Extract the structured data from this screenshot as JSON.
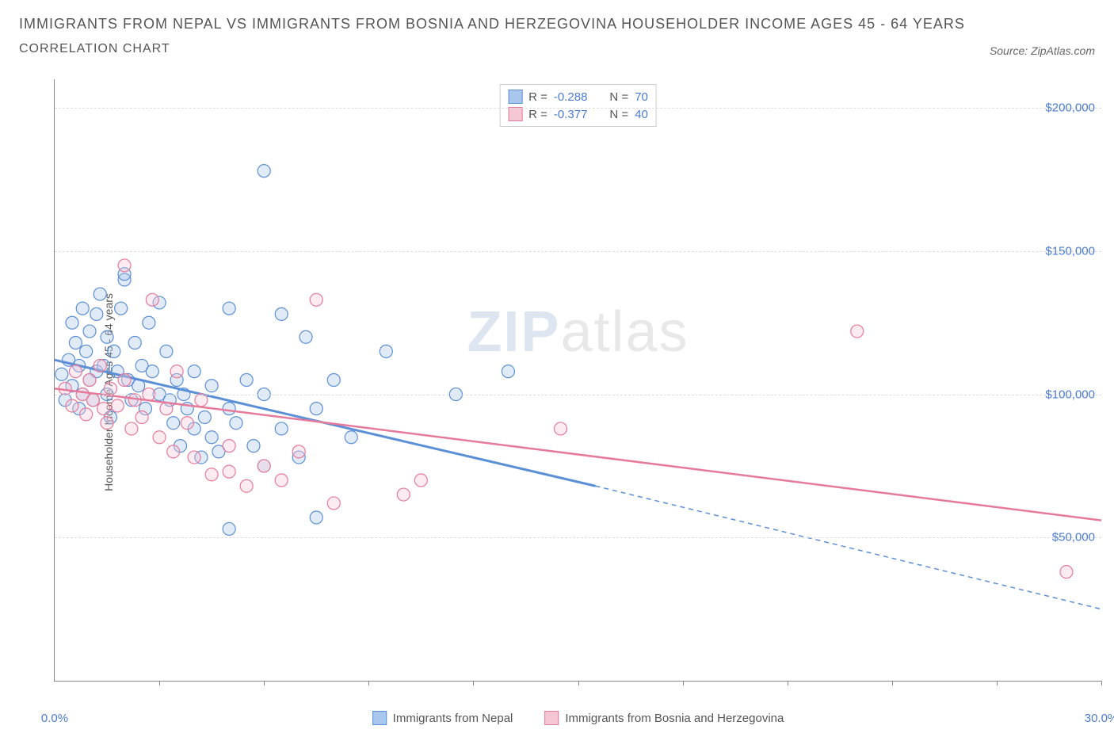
{
  "title_line1": "IMMIGRANTS FROM NEPAL VS IMMIGRANTS FROM BOSNIA AND HERZEGOVINA HOUSEHOLDER INCOME AGES 45 - 64 YEARS",
  "title_line2": "CORRELATION CHART",
  "source_label": "Source: ZipAtlas.com",
  "y_axis_label": "Householder Income Ages 45 - 64 years",
  "watermark_a": "ZIP",
  "watermark_b": "atlas",
  "chart": {
    "type": "scatter",
    "x_min": 0.0,
    "x_max": 30.0,
    "y_min": 0,
    "y_max": 210000,
    "x_tick_labels": [
      {
        "x": 0.0,
        "label": "0.0%"
      },
      {
        "x": 30.0,
        "label": "30.0%"
      }
    ],
    "x_ticks": [
      3,
      6,
      9,
      12,
      15,
      18,
      21,
      24,
      27,
      30
    ],
    "y_ticks": [
      {
        "y": 50000,
        "label": "$50,000"
      },
      {
        "y": 100000,
        "label": "$100,000"
      },
      {
        "y": 150000,
        "label": "$150,000"
      },
      {
        "y": 200000,
        "label": "$200,000"
      }
    ],
    "background_color": "#ffffff",
    "grid_color": "#dddddd",
    "marker_radius": 8,
    "marker_stroke_width": 1.2,
    "marker_fill_opacity": 0.35,
    "series": [
      {
        "name": "Immigrants from Nepal",
        "color_fill": "#a9c6ec",
        "color_stroke": "#5b8fd6",
        "r_label": "R = ",
        "r_value": "-0.288",
        "n_label": "N = ",
        "n_value": "70",
        "trend": {
          "x1": 0,
          "y1": 112000,
          "x2_solid": 15.5,
          "y2_solid": 68000,
          "x2_dash": 30,
          "y2_dash": 25000,
          "width": 3
        },
        "points": [
          [
            0.2,
            107000
          ],
          [
            0.3,
            98000
          ],
          [
            0.4,
            112000
          ],
          [
            0.5,
            125000
          ],
          [
            0.5,
            103000
          ],
          [
            0.6,
            118000
          ],
          [
            0.7,
            95000
          ],
          [
            0.7,
            110000
          ],
          [
            0.8,
            130000
          ],
          [
            0.8,
            100000
          ],
          [
            0.9,
            115000
          ],
          [
            1.0,
            105000
          ],
          [
            1.0,
            122000
          ],
          [
            1.1,
            98000
          ],
          [
            1.2,
            128000
          ],
          [
            1.2,
            108000
          ],
          [
            1.3,
            135000
          ],
          [
            1.4,
            110000
          ],
          [
            1.5,
            100000
          ],
          [
            1.5,
            120000
          ],
          [
            1.6,
            92000
          ],
          [
            1.7,
            115000
          ],
          [
            1.8,
            108000
          ],
          [
            1.9,
            130000
          ],
          [
            2.0,
            140000
          ],
          [
            2.0,
            142000
          ],
          [
            2.1,
            105000
          ],
          [
            2.2,
            98000
          ],
          [
            2.3,
            118000
          ],
          [
            2.4,
            103000
          ],
          [
            2.5,
            110000
          ],
          [
            2.6,
            95000
          ],
          [
            2.7,
            125000
          ],
          [
            2.8,
            108000
          ],
          [
            3.0,
            100000
          ],
          [
            3.0,
            132000
          ],
          [
            3.2,
            115000
          ],
          [
            3.3,
            98000
          ],
          [
            3.4,
            90000
          ],
          [
            3.5,
            105000
          ],
          [
            3.6,
            82000
          ],
          [
            3.7,
            100000
          ],
          [
            3.8,
            95000
          ],
          [
            4.0,
            88000
          ],
          [
            4.0,
            108000
          ],
          [
            4.2,
            78000
          ],
          [
            4.3,
            92000
          ],
          [
            4.5,
            85000
          ],
          [
            4.5,
            103000
          ],
          [
            4.7,
            80000
          ],
          [
            5.0,
            95000
          ],
          [
            5.0,
            130000
          ],
          [
            5.0,
            53000
          ],
          [
            5.2,
            90000
          ],
          [
            5.5,
            105000
          ],
          [
            5.7,
            82000
          ],
          [
            6.0,
            100000
          ],
          [
            6.0,
            75000
          ],
          [
            6.5,
            128000
          ],
          [
            6.5,
            88000
          ],
          [
            7.0,
            78000
          ],
          [
            7.2,
            120000
          ],
          [
            7.5,
            95000
          ],
          [
            7.5,
            57000
          ],
          [
            6.0,
            178000
          ],
          [
            8.0,
            105000
          ],
          [
            8.5,
            85000
          ],
          [
            9.5,
            115000
          ],
          [
            11.5,
            100000
          ],
          [
            13.0,
            108000
          ]
        ]
      },
      {
        "name": "Immigrants from Bosnia and Herzegovina",
        "color_fill": "#f5c6d3",
        "color_stroke": "#e67a9a",
        "r_label": "R = ",
        "r_value": "-0.377",
        "n_label": "N = ",
        "n_value": "40",
        "trend": {
          "x1": 0,
          "y1": 102000,
          "x2_solid": 30,
          "y2_solid": 56000,
          "x2_dash": 30,
          "y2_dash": 56000,
          "width": 2.5
        },
        "points": [
          [
            0.3,
            102000
          ],
          [
            0.5,
            96000
          ],
          [
            0.6,
            108000
          ],
          [
            0.8,
            100000
          ],
          [
            0.9,
            93000
          ],
          [
            1.0,
            105000
          ],
          [
            1.1,
            98000
          ],
          [
            1.3,
            110000
          ],
          [
            1.4,
            95000
          ],
          [
            1.5,
            90000
          ],
          [
            1.6,
            102000
          ],
          [
            1.8,
            96000
          ],
          [
            2.0,
            105000
          ],
          [
            2.0,
            145000
          ],
          [
            2.2,
            88000
          ],
          [
            2.3,
            98000
          ],
          [
            2.5,
            92000
          ],
          [
            2.7,
            100000
          ],
          [
            2.8,
            133000
          ],
          [
            3.0,
            85000
          ],
          [
            3.2,
            95000
          ],
          [
            3.4,
            80000
          ],
          [
            3.5,
            108000
          ],
          [
            3.8,
            90000
          ],
          [
            4.0,
            78000
          ],
          [
            4.2,
            98000
          ],
          [
            4.5,
            72000
          ],
          [
            5.0,
            82000
          ],
          [
            5.0,
            73000
          ],
          [
            5.5,
            68000
          ],
          [
            6.0,
            75000
          ],
          [
            6.5,
            70000
          ],
          [
            7.0,
            80000
          ],
          [
            7.5,
            133000
          ],
          [
            8.0,
            62000
          ],
          [
            10.0,
            65000
          ],
          [
            10.5,
            70000
          ],
          [
            14.5,
            88000
          ],
          [
            23.0,
            122000
          ],
          [
            29.0,
            38000
          ]
        ]
      }
    ]
  }
}
